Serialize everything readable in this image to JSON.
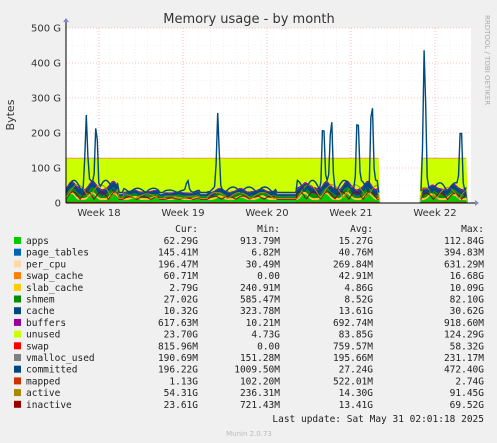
{
  "chart_data": {
    "type": "area",
    "title": "Memory usage - by month",
    "ylabel": "Bytes",
    "side_label": "RRDTOOL / TOBI OETIKER",
    "yticks": [
      "0",
      "100 G",
      "200 G",
      "300 G",
      "400 G",
      "500 G"
    ],
    "ylim": [
      0,
      500
    ],
    "xticks": [
      "Week 18",
      "Week 19",
      "Week 20",
      "Week 21",
      "Week 22"
    ],
    "grid": true,
    "legend_header": {
      "cur": "Cur:",
      "min": "Min:",
      "avg": "Avg:",
      "max": "Max:"
    },
    "legend": [
      {
        "name": "apps",
        "color": "#00cc00",
        "cur": "62.29G",
        "min": "913.79M",
        "avg": "15.27G",
        "max": "112.84G"
      },
      {
        "name": "page_tables",
        "color": "#0066b3",
        "cur": "145.41M",
        "min": "6.82M",
        "avg": "40.76M",
        "max": "394.83M"
      },
      {
        "name": "per_cpu",
        "color": "#ffd8a8",
        "cur": "196.47M",
        "min": "30.49M",
        "avg": "269.84M",
        "max": "631.29M"
      },
      {
        "name": "swap_cache",
        "color": "#ff8000",
        "cur": "60.71M",
        "min": "0.00",
        "avg": "42.91M",
        "max": "16.68G"
      },
      {
        "name": "slab_cache",
        "color": "#ffcc00",
        "cur": "2.79G",
        "min": "240.91M",
        "avg": "4.86G",
        "max": "10.09G"
      },
      {
        "name": "shmem",
        "color": "#008f00",
        "cur": "27.02G",
        "min": "585.47M",
        "avg": "8.52G",
        "max": "82.10G"
      },
      {
        "name": "cache",
        "color": "#00487d",
        "cur": "10.32G",
        "min": "323.78M",
        "avg": "13.61G",
        "max": "30.62G"
      },
      {
        "name": "buffers",
        "color": "#990099",
        "cur": "617.63M",
        "min": "10.21M",
        "avg": "692.74M",
        "max": "918.60M"
      },
      {
        "name": "unused",
        "color": "#ccff00",
        "cur": "23.70G",
        "min": "4.73G",
        "avg": "83.85G",
        "max": "124.29G"
      },
      {
        "name": "swap",
        "color": "#ff0000",
        "cur": "815.96M",
        "min": "0.00",
        "avg": "759.57M",
        "max": "58.32G"
      },
      {
        "name": "vmalloc_used",
        "color": "#808080",
        "cur": "190.69M",
        "min": "151.28M",
        "avg": "195.66M",
        "max": "231.17M"
      },
      {
        "name": "committed",
        "color": "#00487d",
        "cur": "196.22G",
        "min": "1009.50M",
        "avg": "27.24G",
        "max": "472.40G"
      },
      {
        "name": "mapped",
        "color": "#cc3300",
        "cur": "1.13G",
        "min": "102.20M",
        "avg": "522.01M",
        "max": "2.74G"
      },
      {
        "name": "active",
        "color": "#aa8800",
        "cur": "54.31G",
        "min": "236.31M",
        "avg": "14.30G",
        "max": "91.45G"
      },
      {
        "name": "inactive",
        "color": "#990000",
        "cur": "23.61G",
        "min": "721.43M",
        "avg": "13.41G",
        "max": "69.52G"
      }
    ],
    "last_update": "Last update: Sat May 31 02:01:18 2025",
    "footer": "Munin 2.0.73"
  }
}
